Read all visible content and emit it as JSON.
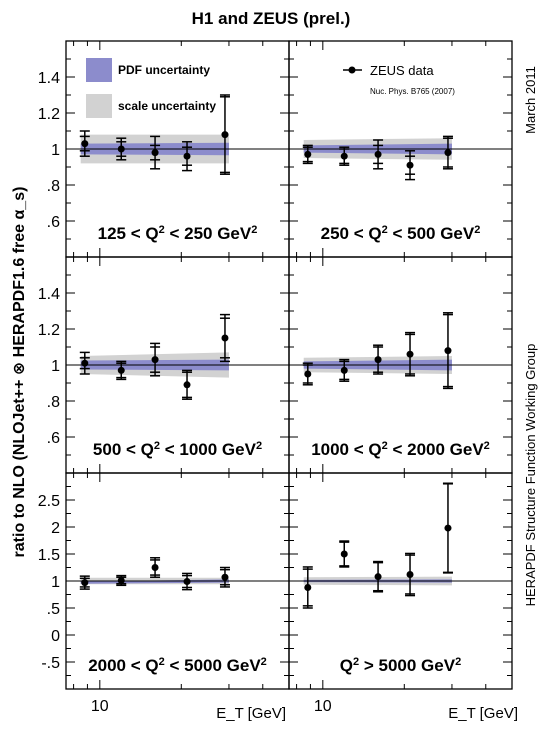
{
  "figure": {
    "title": "H1 and ZEUS (prel.)",
    "ylabel": "ratio to NLO (NLOJet++ ⊗ HERAPDF1.6 free α_s)",
    "xlabel": "E_T [GeV]",
    "right_label_top": "March 2011",
    "right_label_bottom": "HERAPDF Structure Function Working Group"
  },
  "legend": {
    "pdf_label": "PDF uncertainty",
    "scale_label": "scale uncertainty",
    "data_label": "ZEUS data",
    "reference": "Nuc. Phys. B765 (2007)"
  },
  "colors": {
    "pdf_band": "#8c8ccc",
    "scale_band": "#d2d2d2",
    "data": "#000000",
    "frame": "#000000"
  },
  "chart_data": [
    {
      "type": "scatter",
      "panel": "top-left",
      "label": "125 < Q² < 250 GeV²",
      "xscale": "log",
      "ylim": [
        0.4,
        1.6
      ],
      "yticks": [
        0.6,
        0.8,
        1,
        1.2,
        1.4
      ],
      "xticks": [
        10
      ],
      "x": [
        8.8,
        12.0,
        16.0,
        21.0,
        29.0
      ],
      "y": [
        1.03,
        1.0,
        0.98,
        0.96,
        1.08
      ],
      "err_stat": [
        0.04,
        0.04,
        0.04,
        0.05,
        0.21
      ],
      "err_tot": [
        0.07,
        0.06,
        0.09,
        0.08,
        0.22
      ],
      "pdf_band": {
        "x": [
          8.5,
          30
        ],
        "center": [
          1.0,
          1.0
        ],
        "half": [
          0.03,
          0.035
        ]
      },
      "scale_band": {
        "x": [
          8.5,
          30
        ],
        "center": [
          1.0,
          1.0
        ],
        "half": [
          0.08,
          0.08
        ]
      }
    },
    {
      "type": "scatter",
      "panel": "top-right",
      "label": "250 < Q² < 500 GeV²",
      "xscale": "log",
      "ylim": [
        0.4,
        1.6
      ],
      "yticks": [
        0.6,
        0.8,
        1,
        1.2,
        1.4
      ],
      "xticks": [
        10
      ],
      "x": [
        8.8,
        12.0,
        16.0,
        21.0,
        29.0
      ],
      "y": [
        0.97,
        0.96,
        0.97,
        0.91,
        0.98
      ],
      "err_stat": [
        0.04,
        0.04,
        0.05,
        0.05,
        0.08
      ],
      "err_tot": [
        0.05,
        0.05,
        0.08,
        0.08,
        0.09
      ],
      "pdf_band": {
        "x": [
          8.5,
          30
        ],
        "center": [
          1.0,
          1.0
        ],
        "half": [
          0.02,
          0.03
        ]
      },
      "scale_band": {
        "x": [
          8.5,
          30
        ],
        "center": [
          1.0,
          1.0
        ],
        "half": [
          0.05,
          0.06
        ]
      }
    },
    {
      "type": "scatter",
      "panel": "middle-left",
      "label": "500 < Q² < 1000 GeV²",
      "xscale": "log",
      "ylim": [
        0.4,
        1.6
      ],
      "yticks": [
        0.6,
        0.8,
        1,
        1.2,
        1.4
      ],
      "xticks": [
        10
      ],
      "x": [
        8.8,
        12.0,
        16.0,
        21.0,
        29.0
      ],
      "y": [
        1.01,
        0.97,
        1.03,
        0.89,
        1.15
      ],
      "err_stat": [
        0.03,
        0.04,
        0.07,
        0.07,
        0.11
      ],
      "err_tot": [
        0.06,
        0.05,
        0.09,
        0.08,
        0.13
      ],
      "pdf_band": {
        "x": [
          8.5,
          30
        ],
        "center": [
          1.0,
          1.0
        ],
        "half": [
          0.025,
          0.03
        ]
      },
      "scale_band": {
        "x": [
          8.5,
          30
        ],
        "center": [
          1.0,
          1.0
        ],
        "half": [
          0.05,
          0.07
        ]
      }
    },
    {
      "type": "scatter",
      "panel": "middle-right",
      "label": "1000 < Q² < 2000 GeV²",
      "xscale": "log",
      "ylim": [
        0.4,
        1.6
      ],
      "yticks": [
        0.6,
        0.8,
        1,
        1.2,
        1.4
      ],
      "xticks": [
        10
      ],
      "x": [
        8.8,
        12.0,
        16.0,
        21.0,
        29.0
      ],
      "y": [
        0.95,
        0.97,
        1.03,
        1.06,
        1.08
      ],
      "err_stat": [
        0.05,
        0.05,
        0.07,
        0.11,
        0.2
      ],
      "err_tot": [
        0.06,
        0.06,
        0.08,
        0.12,
        0.21
      ],
      "pdf_band": {
        "x": [
          8.5,
          30
        ],
        "center": [
          1.0,
          1.0
        ],
        "half": [
          0.02,
          0.03
        ]
      },
      "scale_band": {
        "x": [
          8.5,
          30
        ],
        "center": [
          1.0,
          1.0
        ],
        "half": [
          0.04,
          0.05
        ]
      }
    },
    {
      "type": "scatter",
      "panel": "bottom-left",
      "label": "2000 < Q² < 5000 GeV²",
      "xscale": "log",
      "ylim": [
        -1.0,
        3.0
      ],
      "yticks": [
        -0.5,
        0,
        0.5,
        1,
        1.5,
        2,
        2.5
      ],
      "xticks": [
        10
      ],
      "x": [
        8.8,
        12.0,
        16.0,
        21.0,
        29.0
      ],
      "y": [
        0.97,
        1.01,
        1.25,
        0.99,
        1.07
      ],
      "err_stat": [
        0.08,
        0.06,
        0.14,
        0.11,
        0.14
      ],
      "err_tot": [
        0.12,
        0.09,
        0.18,
        0.15,
        0.18
      ],
      "pdf_band": {
        "x": [
          8.5,
          30
        ],
        "center": [
          0.97,
          1.0
        ],
        "half": [
          0.02,
          0.03
        ]
      },
      "scale_band": {
        "x": [
          8.5,
          30
        ],
        "center": [
          1.0,
          1.0
        ],
        "half": [
          0.06,
          0.06
        ]
      }
    },
    {
      "type": "scatter",
      "panel": "bottom-right",
      "label": "Q² > 5000 GeV²",
      "xscale": "log",
      "ylim": [
        -1.0,
        3.0
      ],
      "yticks": [
        -0.5,
        0,
        0.5,
        1,
        1.5,
        2,
        2.5
      ],
      "xticks": [
        10
      ],
      "x": [
        8.8,
        12.0,
        16.0,
        21.0,
        29.0
      ],
      "y": [
        0.88,
        1.5,
        1.08,
        1.12,
        1.98
      ],
      "err_stat": [
        0.34,
        0.22,
        0.26,
        0.36,
        0.82
      ],
      "err_tot": [
        0.38,
        0.24,
        0.28,
        0.39,
        0.83
      ],
      "pdf_band": {
        "x": [
          8.5,
          30
        ],
        "center": [
          1.0,
          1.0
        ],
        "half": [
          0.02,
          0.03
        ]
      },
      "scale_band": {
        "x": [
          8.5,
          30
        ],
        "center": [
          1.0,
          1.0
        ],
        "half": [
          0.07,
          0.08
        ]
      }
    }
  ]
}
